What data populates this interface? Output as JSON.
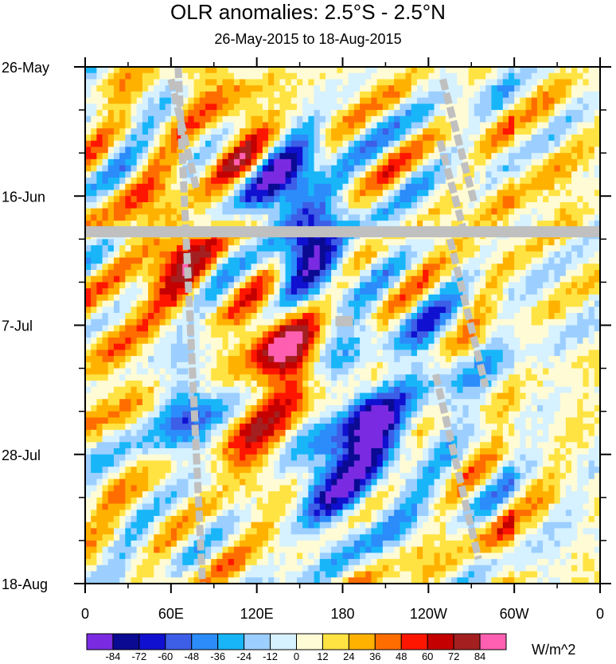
{
  "chart_data": {
    "type": "heatmap",
    "title": "OLR anomalies: 2.5°S - 2.5°N",
    "subtitle": "26-May-2015 to 18-Aug-2015",
    "xlabel": "",
    "ylabel": "",
    "x_ticks": [
      "0",
      "60E",
      "120E",
      "180",
      "120W",
      "60W",
      "0"
    ],
    "x_tick_values": [
      0,
      60,
      120,
      180,
      240,
      300,
      360
    ],
    "y_ticks": [
      "26-May",
      "16-Jun",
      "7-Jul",
      "28-Jul",
      "18-Aug"
    ],
    "y_tick_days": [
      0,
      21,
      42,
      63,
      84
    ],
    "xlim": [
      0,
      360
    ],
    "ylim_days": [
      0,
      84
    ],
    "y_direction": "time increasing downward",
    "colorbar": {
      "levels": [
        -84,
        -72,
        -60,
        -48,
        -36,
        -24,
        -12,
        0,
        12,
        24,
        36,
        48,
        60,
        72,
        84
      ],
      "colors": [
        "#7a2be2",
        "#0b0a93",
        "#1010d0",
        "#3d5ee6",
        "#2b8cfa",
        "#18b6f8",
        "#9ccfff",
        "#d6f1ff",
        "#fffbd5",
        "#ffe342",
        "#ffb100",
        "#ff6d00",
        "#ff1600",
        "#c40000",
        "#a42020",
        "#ff5fb0"
      ],
      "units": "W/m^2"
    },
    "missing_color": "#c0c0c0",
    "anomaly_features": [
      {
        "lon": 60,
        "day": 30,
        "value": 48
      },
      {
        "lon": 140,
        "day": 46,
        "value": 72
      },
      {
        "lon": 120,
        "day": 62,
        "value": 36
      },
      {
        "lon": 105,
        "day": 8,
        "value": 36
      },
      {
        "lon": 145,
        "day": 20,
        "value": -72
      },
      {
        "lon": 160,
        "day": 33,
        "value": -60
      },
      {
        "lon": 200,
        "day": 59,
        "value": -84
      },
      {
        "lon": 170,
        "day": 68,
        "value": -60
      },
      {
        "lon": 70,
        "day": 56,
        "value": -48
      },
      {
        "lon": 240,
        "day": 45,
        "value": -36
      },
      {
        "lon": 330,
        "day": 22,
        "value": 24
      },
      {
        "lon": 30,
        "day": 48,
        "value": 24
      }
    ]
  }
}
